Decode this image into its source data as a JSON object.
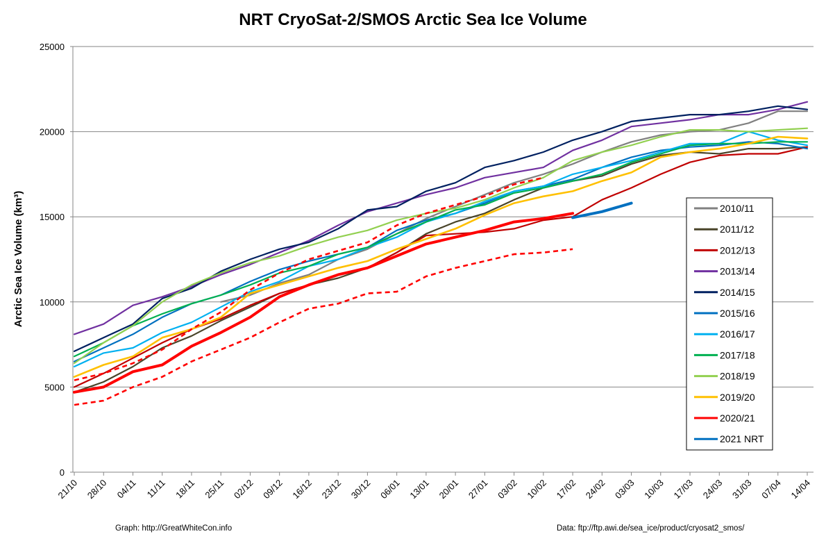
{
  "chart_data": {
    "type": "line",
    "title": "NRT CryoSat-2/SMOS Arctic Sea Ice Volume",
    "xlabel": "",
    "ylabel": "Arctic Sea Ice Volume (km³)",
    "ylim": [
      0,
      25000
    ],
    "yticks": [
      0,
      5000,
      10000,
      15000,
      20000,
      25000
    ],
    "grid": "horizontal",
    "legend_position": "right",
    "categories": [
      "21/10",
      "28/10",
      "04/11",
      "11/11",
      "18/11",
      "25/11",
      "02/12",
      "09/12",
      "16/12",
      "23/12",
      "30/12",
      "06/01",
      "13/01",
      "20/01",
      "27/01",
      "03/02",
      "10/02",
      "17/02",
      "24/02",
      "03/03",
      "10/03",
      "17/03",
      "24/03",
      "31/03",
      "07/04",
      "14/04"
    ],
    "series": [
      {
        "name": "2010/11",
        "color": "#808080",
        "width": 2.2,
        "values": [
          null,
          null,
          null,
          null,
          null,
          10000,
          10400,
          11100,
          11600,
          12500,
          13100,
          14000,
          14900,
          15600,
          16300,
          17000,
          17500,
          18100,
          18800,
          19400,
          19800,
          20000,
          20100,
          20500,
          21200,
          21200
        ]
      },
      {
        "name": "2011/12",
        "color": "#494429",
        "width": 2.2,
        "values": [
          4700,
          5300,
          6200,
          7300,
          8000,
          8900,
          9700,
          10500,
          11000,
          11400,
          12000,
          12900,
          14000,
          14700,
          15200,
          16000,
          16700,
          17100,
          17400,
          18100,
          18600,
          18800,
          18700,
          19000,
          19000,
          19100
        ]
      },
      {
        "name": "2012/13",
        "color": "#c00000",
        "width": 2.2,
        "values": [
          5000,
          5800,
          6700,
          7600,
          8400,
          9000,
          9800,
          10500,
          11000,
          11600,
          12000,
          12900,
          13900,
          14000,
          14100,
          14300,
          14800,
          15000,
          16000,
          16700,
          17500,
          18200,
          18600,
          18700,
          18700,
          19100
        ]
      },
      {
        "name": "2013/14",
        "color": "#7030a0",
        "width": 2.2,
        "values": [
          8100,
          8700,
          9800,
          10300,
          10900,
          11600,
          12200,
          12900,
          13600,
          14500,
          15300,
          15800,
          16300,
          16700,
          17300,
          17600,
          17900,
          18900,
          19500,
          20300,
          20500,
          20700,
          21000,
          21000,
          21300,
          21750
        ]
      },
      {
        "name": "2014/15",
        "color": "#002060",
        "width": 2.2,
        "values": [
          7100,
          7900,
          8700,
          10200,
          10800,
          11800,
          12500,
          13100,
          13500,
          14300,
          15400,
          15600,
          16500,
          17000,
          17900,
          18300,
          18800,
          19500,
          20000,
          20600,
          20800,
          21000,
          21000,
          21200,
          21500,
          21300
        ]
      },
      {
        "name": "2015/16",
        "color": "#0070c0",
        "width": 2.2,
        "values": [
          6500,
          7300,
          8100,
          9100,
          9900,
          10400,
          11200,
          11900,
          12400,
          12800,
          13200,
          14200,
          14800,
          15200,
          15800,
          16500,
          16800,
          17200,
          17900,
          18500,
          18900,
          19100,
          19200,
          19400,
          19300,
          19000
        ]
      },
      {
        "name": "2016/17",
        "color": "#00b0f0",
        "width": 2.2,
        "values": [
          6200,
          7000,
          7300,
          8200,
          8800,
          9700,
          10600,
          11200,
          12100,
          12500,
          13200,
          13800,
          14700,
          15200,
          15900,
          16500,
          16800,
          17500,
          17900,
          18300,
          18800,
          19300,
          19300,
          20000,
          19500,
          19200
        ]
      },
      {
        "name": "2017/18",
        "color": "#00b050",
        "width": 2.2,
        "values": [
          6800,
          7600,
          8600,
          9300,
          9900,
          10400,
          11000,
          11700,
          12100,
          12800,
          13200,
          14000,
          14700,
          15400,
          15700,
          16400,
          16700,
          17100,
          17500,
          18200,
          18700,
          19200,
          19300,
          19300,
          19400,
          19400
        ]
      },
      {
        "name": "2018/19",
        "color": "#92d050",
        "width": 2.2,
        "values": [
          6400,
          7600,
          8600,
          10000,
          11000,
          11700,
          12300,
          12700,
          13300,
          13800,
          14200,
          14800,
          15200,
          15500,
          16000,
          16700,
          17300,
          18300,
          18800,
          19200,
          19700,
          20100,
          20100,
          20000,
          20100,
          20200
        ]
      },
      {
        "name": "2019/20",
        "color": "#ffc000",
        "width": 2.6,
        "values": [
          5600,
          6300,
          6800,
          7900,
          8400,
          9100,
          10500,
          11000,
          11500,
          12000,
          12400,
          13100,
          13700,
          14300,
          15100,
          15800,
          16200,
          16500,
          17100,
          17600,
          18500,
          18800,
          19000,
          19300,
          19700,
          19600
        ]
      },
      {
        "name": "",
        "color": "#ff0000",
        "width": 2.6,
        "dashed": true,
        "values": [
          5400,
          5800,
          6400,
          7200,
          8400,
          9400,
          10700,
          11700,
          12500,
          13000,
          13500,
          14500,
          15200,
          15700,
          16200,
          16900,
          17300,
          null,
          null,
          null,
          null,
          null,
          null,
          null,
          null,
          null
        ]
      },
      {
        "name": "",
        "color": "#ff0000",
        "width": 2.6,
        "dashed": true,
        "values": [
          3950,
          4200,
          5000,
          5600,
          6500,
          7200,
          7900,
          8800,
          9600,
          9900,
          10500,
          10600,
          11500,
          12000,
          12400,
          12800,
          12900,
          13100,
          null,
          null,
          null,
          null,
          null,
          null,
          null,
          null
        ]
      },
      {
        "name": "2020/21",
        "color": "#ff0000",
        "width": 4,
        "values": [
          4700,
          5000,
          5900,
          6300,
          7400,
          8200,
          9100,
          10300,
          11000,
          11600,
          12000,
          12700,
          13400,
          13800,
          14200,
          14700,
          14900,
          15200,
          null,
          null,
          null,
          null,
          null,
          null,
          null,
          null
        ]
      },
      {
        "name": "2021 NRT",
        "color": "#0070c0",
        "width": 4,
        "values": [
          null,
          null,
          null,
          null,
          null,
          null,
          null,
          null,
          null,
          null,
          null,
          null,
          null,
          null,
          null,
          null,
          null,
          14950,
          15300,
          15800,
          null,
          null,
          null,
          null,
          null,
          null
        ]
      }
    ],
    "legend": [
      "2010/11",
      "2011/12",
      "2012/13",
      "2013/14",
      "2014/15",
      "2015/16",
      "2016/17",
      "2017/18",
      "2018/19",
      "2019/20",
      "2020/21",
      "2021 NRT"
    ],
    "legend_colors": [
      "#808080",
      "#494429",
      "#c00000",
      "#7030a0",
      "#002060",
      "#0070c0",
      "#00b0f0",
      "#00b050",
      "#92d050",
      "#ffc000",
      "#ff0000",
      "#0070c0"
    ]
  },
  "footer": {
    "graph_credit": "Graph: http://GreatWhiteCon.info",
    "data_credit": "Data: ftp://ftp.awi.de/sea_ice/product/cryosat2_smos/"
  }
}
